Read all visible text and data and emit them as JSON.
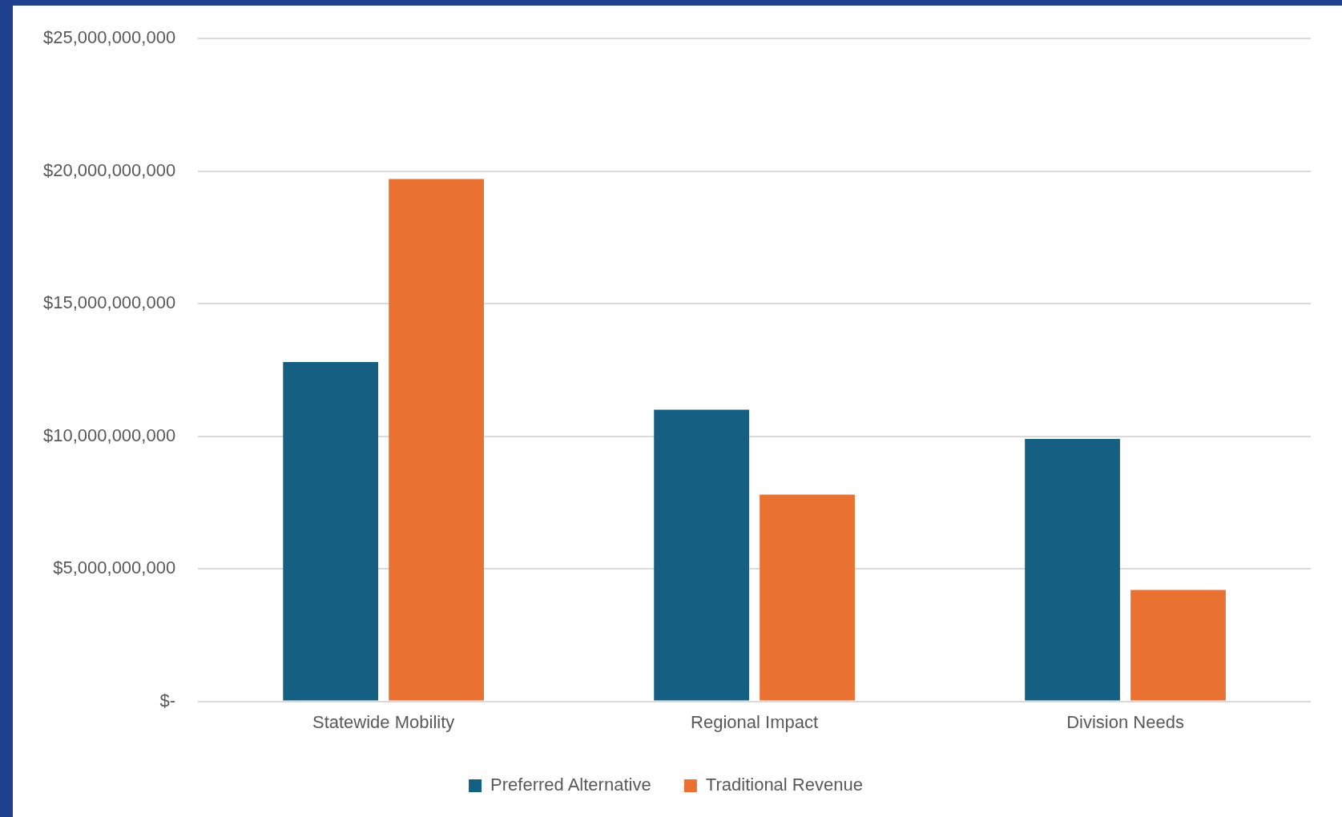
{
  "chart_data": {
    "type": "bar",
    "categories": [
      "Statewide Mobility",
      "Regional Impact",
      "Division Needs"
    ],
    "series": [
      {
        "name": "Preferred Alternative",
        "color": "#156082",
        "values": [
          12800000000,
          11000000000,
          9900000000
        ]
      },
      {
        "name": "Traditional Revenue",
        "color": "#e97132",
        "values": [
          19700000000,
          7800000000,
          4200000000
        ]
      }
    ],
    "ylim": [
      0,
      25000000000
    ],
    "yticks": [
      {
        "value": 0,
        "label": "$-"
      },
      {
        "value": 5000000000,
        "label": "$5,000,000,000"
      },
      {
        "value": 10000000000,
        "label": "$10,000,000,000"
      },
      {
        "value": 15000000000,
        "label": "$15,000,000,000"
      },
      {
        "value": 20000000000,
        "label": "$20,000,000,000"
      },
      {
        "value": 25000000000,
        "label": "$25,000,000,000"
      }
    ],
    "grid": "y",
    "legend": "bottom"
  }
}
